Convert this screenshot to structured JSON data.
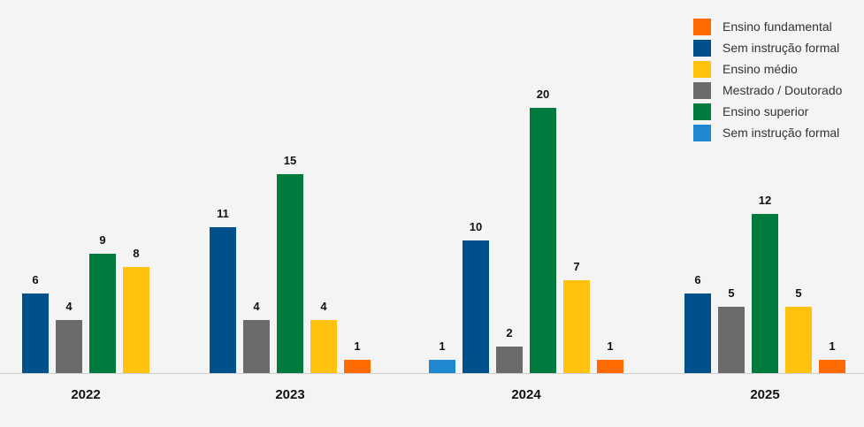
{
  "chart_data": {
    "type": "bar",
    "groups": [
      {
        "year": "2022",
        "bars": [
          {
            "series": "sem_instrucao_escuro",
            "value": 6
          },
          {
            "series": "mestrado_doutorado",
            "value": 4
          },
          {
            "series": "ensino_superior",
            "value": 9
          },
          {
            "series": "ensino_medio",
            "value": 8
          }
        ]
      },
      {
        "year": "2023",
        "bars": [
          {
            "series": "sem_instrucao_escuro",
            "value": 11
          },
          {
            "series": "mestrado_doutorado",
            "value": 4
          },
          {
            "series": "ensino_superior",
            "value": 15
          },
          {
            "series": "ensino_medio",
            "value": 4
          },
          {
            "series": "ensino_fundamental",
            "value": 1
          }
        ]
      },
      {
        "year": "2024",
        "bars": [
          {
            "series": "sem_instrucao_claro",
            "value": 1
          },
          {
            "series": "sem_instrucao_escuro",
            "value": 10
          },
          {
            "series": "mestrado_doutorado",
            "value": 2
          },
          {
            "series": "ensino_superior",
            "value": 20
          },
          {
            "series": "ensino_medio",
            "value": 7
          },
          {
            "series": "ensino_fundamental",
            "value": 1
          }
        ]
      },
      {
        "year": "2025",
        "bars": [
          {
            "series": "sem_instrucao_escuro",
            "value": 6
          },
          {
            "series": "mestrado_doutorado",
            "value": 5
          },
          {
            "series": "ensino_superior",
            "value": 12
          },
          {
            "series": "ensino_medio",
            "value": 5
          },
          {
            "series": "ensino_fundamental",
            "value": 1
          }
        ]
      }
    ],
    "series": [
      {
        "key": "ensino_fundamental",
        "name": "Ensino fundamental",
        "color": "#ff6a00"
      },
      {
        "key": "sem_instrucao_escuro",
        "name": "Sem instrução formal",
        "color": "#00508c"
      },
      {
        "key": "ensino_medio",
        "name": "Ensino médio",
        "color": "#ffc20e"
      },
      {
        "key": "mestrado_doutorado",
        "name": "Mestrado / Doutorado",
        "color": "#6b6b6e"
      },
      {
        "key": "ensino_superior",
        "name": "Ensino superior",
        "color": "#007a3d"
      },
      {
        "key": "sem_instrucao_claro",
        "name": "Sem instrução formal",
        "color": "#1e88d3"
      }
    ],
    "legend_position": "top-right",
    "grid": false,
    "ylim": [
      0,
      20
    ]
  }
}
